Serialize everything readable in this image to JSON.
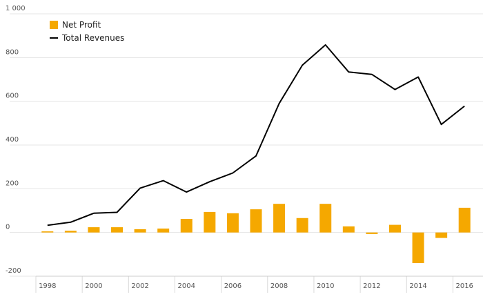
{
  "chart_data": {
    "type": "bar",
    "title": "",
    "xlabel": "",
    "ylabel": "",
    "ylim": [
      -200,
      1000
    ],
    "y_ticks": [
      -200,
      0,
      200,
      400,
      600,
      800,
      1000
    ],
    "y_tick_labels": [
      "-200",
      "0",
      "200",
      "400",
      "600",
      "800",
      "1 000"
    ],
    "x_tick_labels": [
      "1998",
      "2000",
      "2002",
      "2004",
      "2006",
      "2008",
      "2010",
      "2012",
      "2014",
      "2016"
    ],
    "grid": true,
    "legend_position": "top-left",
    "categories": [
      "1998",
      "1999",
      "2000",
      "2001",
      "2002",
      "2003",
      "2004",
      "2005",
      "2006",
      "2007",
      "2008",
      "2009",
      "2010",
      "2011",
      "2012",
      "2013",
      "2014",
      "2015",
      "2016"
    ],
    "series": [
      {
        "name": "Net Profit",
        "type": "bar",
        "color": "#f5a800",
        "values": [
          5,
          8,
          24,
          24,
          15,
          18,
          62,
          94,
          88,
          106,
          131,
          66,
          131,
          28,
          -7,
          35,
          -140,
          -25,
          113
        ]
      },
      {
        "name": "Total Revenues",
        "type": "line",
        "color": "#000000",
        "values": [
          33,
          47,
          88,
          92,
          203,
          237,
          185,
          232,
          272,
          350,
          590,
          765,
          858,
          734,
          723,
          654,
          711,
          494,
          578
        ]
      }
    ]
  }
}
